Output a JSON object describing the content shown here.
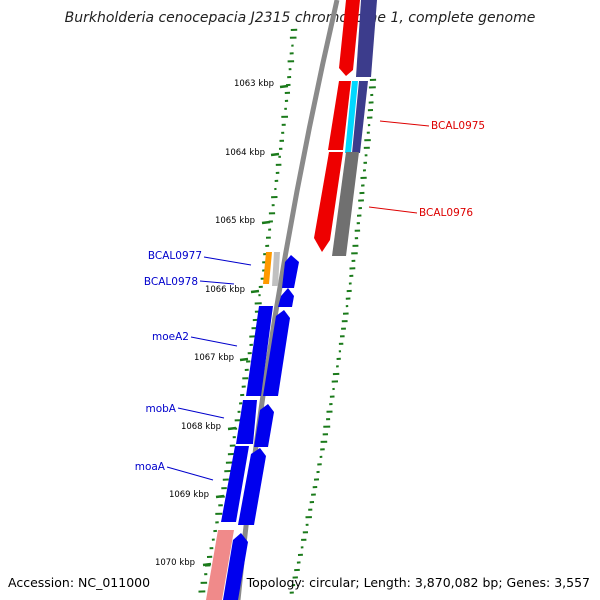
{
  "title": "Burkholderia cenocepacia J2315 chromosome 1, complete genome",
  "accession": "Accession: NC_011000",
  "summary": "Topology: circular; Length: 3,870,082 bp; Genes: 3,557",
  "colors": {
    "forward_gene": "#0000ee",
    "reverse_gene": "#ee0000",
    "grey_gene": "#707070",
    "purple_gene": "#3c3c8c",
    "cyan_gene": "#00d8ff",
    "orange_gene": "#ff9a00",
    "pink_gene": "#f08a8a",
    "gc_tick": "#1a7a1a",
    "backbone": "#8a8a8a",
    "label_red": "#dd0000",
    "label_blue": "#0000cc"
  },
  "scale_ticks": [
    {
      "label": "1063 kbp",
      "value": 1063
    },
    {
      "label": "1064 kbp",
      "value": 1064
    },
    {
      "label": "1065 kbp",
      "value": 1065
    },
    {
      "label": "1066 kbp",
      "value": 1066
    },
    {
      "label": "1067 kbp",
      "value": 1067
    },
    {
      "label": "1068 kbp",
      "value": 1068
    },
    {
      "label": "1069 kbp",
      "value": 1069
    },
    {
      "label": "1070 kbp",
      "value": 1070
    }
  ],
  "gene_labels": [
    {
      "name": "BCAL0975",
      "strand": "reverse"
    },
    {
      "name": "BCAL0976",
      "strand": "reverse"
    },
    {
      "name": "BCAL0977",
      "strand": "forward"
    },
    {
      "name": "BCAL0978",
      "strand": "forward"
    },
    {
      "name": "moeA2",
      "strand": "forward"
    },
    {
      "name": "mobA",
      "strand": "forward"
    },
    {
      "name": "moaA",
      "strand": "forward"
    }
  ]
}
